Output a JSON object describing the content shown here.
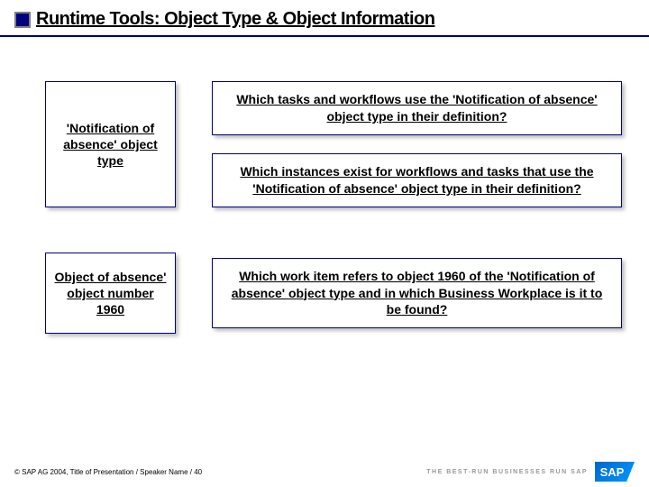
{
  "title": "Runtime Tools: Object Type & Object Information",
  "row1": {
    "left": "'Notification of absence' object type",
    "q1": "Which tasks and workflows use the 'Notification of absence' object type in their definition?",
    "q2": "Which instances exist for workflows and tasks that use the 'Notification of absence' object type in their definition?"
  },
  "row2": {
    "left": "Object of absence' object number 1960",
    "q1": "Which work item refers to object 1960 of the 'Notification of absence' object type and in which Business Workplace is it to be found?"
  },
  "footer": {
    "copyright": "© SAP AG 2004, Title of Presentation / Speaker Name / 40",
    "tagline": "THE BEST-RUN BUSINESSES RUN SAP",
    "logo": "SAP"
  },
  "colors": {
    "border": "#000080",
    "title_square": "#000080",
    "text": "#000000",
    "background": "#ffffff"
  }
}
